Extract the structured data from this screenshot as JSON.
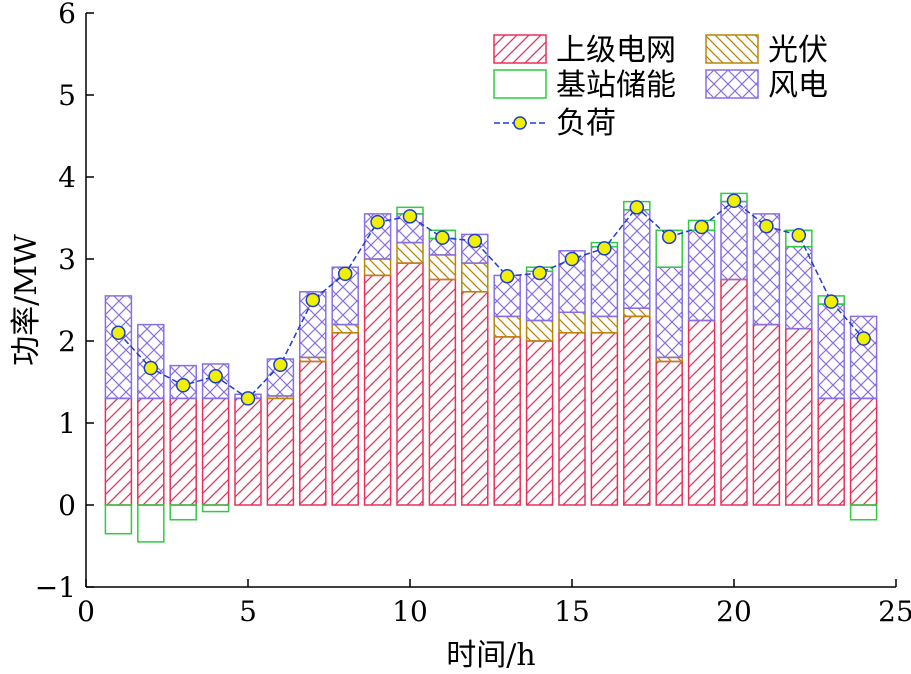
{
  "chart_data": {
    "type": "bar",
    "stacked": true,
    "xlabel": "时间/h",
    "ylabel": "功率/MW",
    "xlim": [
      0,
      25
    ],
    "ylim": [
      -1,
      6
    ],
    "xticks": [
      0,
      5,
      10,
      15,
      20,
      25
    ],
    "yticks": [
      -1,
      0,
      1,
      2,
      3,
      4,
      5,
      6
    ],
    "grid": false,
    "legend_position": "top-right",
    "x": [
      1,
      2,
      3,
      4,
      5,
      6,
      7,
      8,
      9,
      10,
      11,
      12,
      13,
      14,
      15,
      16,
      17,
      18,
      19,
      20,
      21,
      22,
      23,
      24
    ],
    "series": [
      {
        "name": "上级电网",
        "color": "#e8305a",
        "pattern": "hatch-forward",
        "values": [
          1.3,
          1.3,
          1.3,
          1.3,
          1.3,
          1.3,
          1.75,
          2.1,
          2.8,
          2.95,
          2.75,
          2.6,
          2.05,
          2.0,
          2.1,
          2.1,
          2.3,
          1.75,
          2.25,
          2.75,
          2.2,
          2.15,
          1.3,
          1.3
        ]
      },
      {
        "name": "光伏",
        "color": "#b8860b",
        "pattern": "hatch-back",
        "values": [
          0,
          0,
          0,
          0,
          0,
          0.03,
          0.05,
          0.1,
          0.2,
          0.25,
          0.3,
          0.35,
          0.25,
          0.25,
          0.25,
          0.2,
          0.1,
          0.05,
          0,
          0,
          0,
          0,
          0,
          0
        ]
      },
      {
        "name": "风电",
        "color": "#8a6fe0",
        "pattern": "crosshatch",
        "values": [
          1.25,
          0.9,
          0.4,
          0.42,
          0.05,
          0.45,
          0.8,
          0.7,
          0.55,
          0.35,
          0.2,
          0.35,
          0.5,
          0.6,
          0.75,
          0.85,
          1.2,
          1.1,
          1.1,
          0.95,
          1.35,
          1.0,
          1.15,
          1.0
        ]
      },
      {
        "name": "基站储能",
        "color": "#2ecc40",
        "pattern": "none",
        "values": [
          -0.35,
          -0.45,
          -0.18,
          -0.08,
          0,
          0,
          0,
          0,
          0,
          0.08,
          0.1,
          0,
          0,
          0.05,
          0,
          0.05,
          0.1,
          0.45,
          0.12,
          0.1,
          0,
          0.2,
          0.1,
          -0.18
        ]
      }
    ],
    "line_series": {
      "name": "负荷",
      "line_color": "#1e3fd0",
      "marker_fill": "#f0f000",
      "values": [
        2.1,
        1.67,
        1.46,
        1.57,
        1.3,
        1.71,
        2.5,
        2.82,
        3.45,
        3.52,
        3.26,
        3.22,
        2.79,
        2.83,
        3.0,
        3.13,
        3.63,
        3.27,
        3.39,
        3.71,
        3.4,
        3.29,
        2.48,
        2.03
      ]
    }
  }
}
